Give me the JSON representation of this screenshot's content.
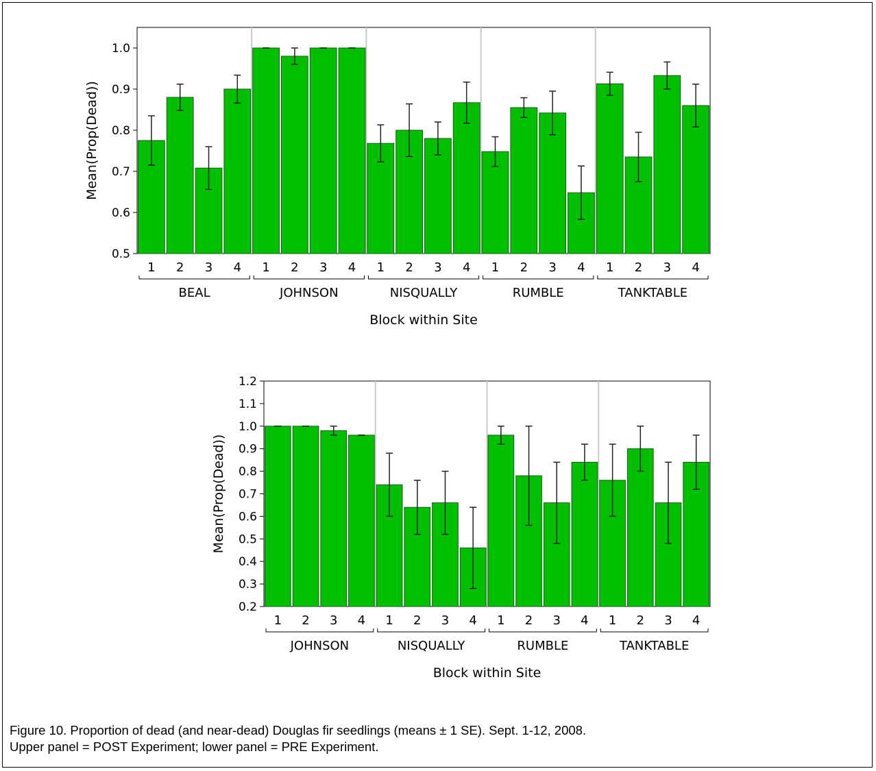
{
  "chart_data": [
    {
      "type": "bar",
      "ylabel": "Mean(Prop(Dead))",
      "xlabel": "Block within Site",
      "ylim": [
        0.5,
        1.05
      ],
      "yticks": [
        "0.5",
        "0.6",
        "0.7",
        "0.8",
        "0.9",
        "1.0"
      ],
      "bar_color": "#00c000",
      "groups": [
        {
          "site": "BEAL",
          "blocks": [
            "1",
            "2",
            "3",
            "4"
          ],
          "means": [
            0.775,
            0.88,
            0.708,
            0.9
          ],
          "se": [
            0.06,
            0.032,
            0.052,
            0.034
          ]
        },
        {
          "site": "JOHNSON",
          "blocks": [
            "1",
            "2",
            "3",
            "4"
          ],
          "means": [
            1.0,
            0.98,
            1.0,
            1.0
          ],
          "se": [
            0.0,
            0.02,
            0.0,
            0.0
          ]
        },
        {
          "site": "NISQUALLY",
          "blocks": [
            "1",
            "2",
            "3",
            "4"
          ],
          "means": [
            0.768,
            0.8,
            0.78,
            0.867
          ],
          "se": [
            0.045,
            0.064,
            0.04,
            0.05
          ]
        },
        {
          "site": "RUMBLE",
          "blocks": [
            "1",
            "2",
            "3",
            "4"
          ],
          "means": [
            0.748,
            0.855,
            0.842,
            0.648
          ],
          "se": [
            0.036,
            0.024,
            0.053,
            0.065
          ]
        },
        {
          "site": "TANKTABLE",
          "blocks": [
            "1",
            "2",
            "3",
            "4"
          ],
          "means": [
            0.913,
            0.735,
            0.933,
            0.86
          ],
          "se": [
            0.028,
            0.06,
            0.033,
            0.052
          ]
        }
      ]
    },
    {
      "type": "bar",
      "ylabel": "Mean(Prop(Dead))",
      "xlabel": "Block within Site",
      "ylim": [
        0.2,
        1.2
      ],
      "yticks": [
        "0.2",
        "0.3",
        "0.4",
        "0.5",
        "0.6",
        "0.7",
        "0.8",
        "0.9",
        "1.0",
        "1.1",
        "1.2"
      ],
      "bar_color": "#00c000",
      "groups": [
        {
          "site": "JOHNSON",
          "blocks": [
            "1",
            "2",
            "3",
            "4"
          ],
          "means": [
            1.0,
            1.0,
            0.98,
            0.96
          ],
          "se": [
            0.0,
            0.0,
            0.02,
            0.0
          ]
        },
        {
          "site": "NISQUALLY",
          "blocks": [
            "1",
            "2",
            "3",
            "4"
          ],
          "means": [
            0.74,
            0.64,
            0.66,
            0.46
          ],
          "se": [
            0.14,
            0.12,
            0.14,
            0.18
          ]
        },
        {
          "site": "RUMBLE",
          "blocks": [
            "1",
            "2",
            "3",
            "4"
          ],
          "means": [
            0.96,
            0.78,
            0.66,
            0.84
          ],
          "se": [
            0.04,
            0.22,
            0.18,
            0.08
          ]
        },
        {
          "site": "TANKTABLE",
          "blocks": [
            "1",
            "2",
            "3",
            "4"
          ],
          "means": [
            0.76,
            0.9,
            0.66,
            0.84
          ],
          "se": [
            0.16,
            0.1,
            0.18,
            0.12
          ]
        }
      ]
    }
  ],
  "caption": {
    "line1": "Figure 10. Proportion of dead (and near-dead) Douglas fir seedlings (means ± 1 SE). Sept. 1-12, 2008.",
    "line2": "Upper panel = POST Experiment; lower panel = PRE Experiment."
  }
}
